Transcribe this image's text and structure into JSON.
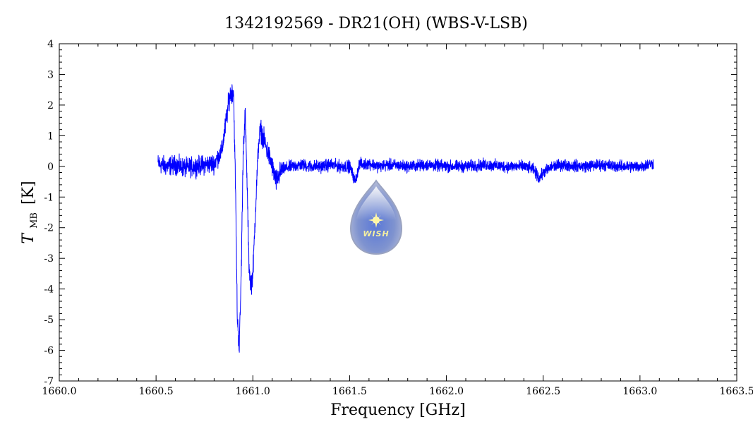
{
  "chart_data": {
    "type": "line",
    "title": "1342192569 - DR21(OH) (WBS-V-LSB)",
    "xlabel": "Frequency [GHz]",
    "ylabel_main": "T",
    "ylabel_sub": "MB",
    "ylabel_unit": "[K]",
    "xlim": [
      1660.0,
      1663.5
    ],
    "ylim": [
      -7,
      4
    ],
    "x_ticks": [
      1660.0,
      1660.5,
      1661.0,
      1661.5,
      1662.0,
      1662.5,
      1663.0,
      1663.5
    ],
    "x_tick_labels": [
      "1660.0",
      "1660.5",
      "1661.0",
      "1661.5",
      "1662.0",
      "1662.5",
      "1663.0",
      "1663.5"
    ],
    "y_ticks": [
      4,
      3,
      2,
      1,
      0,
      -1,
      -2,
      -3,
      -4,
      -5,
      -6,
      -7
    ],
    "y_tick_labels": [
      "4",
      "3",
      "2",
      "1",
      "0",
      "-1",
      "-2",
      "-3",
      "-4",
      "-5",
      "-6",
      "-7"
    ],
    "grid": false,
    "line_color": "#0000ff",
    "series": [
      {
        "x": [
          1660.51,
          1660.55,
          1660.6,
          1660.65,
          1660.7,
          1660.75,
          1660.8,
          1660.84,
          1660.86,
          1660.88,
          1660.9,
          1660.91,
          1660.92,
          1660.93,
          1660.94,
          1660.95,
          1660.96,
          1660.97,
          1660.98,
          1660.99,
          1661.0,
          1661.01,
          1661.02,
          1661.03,
          1661.04,
          1661.06,
          1661.08,
          1661.1,
          1661.12,
          1661.15,
          1661.2,
          1661.25,
          1661.3,
          1661.35,
          1661.4,
          1661.45,
          1661.5,
          1661.53,
          1661.55,
          1661.57,
          1661.6,
          1661.65,
          1661.7,
          1661.8,
          1661.9,
          1662.0,
          1662.1,
          1662.2,
          1662.3,
          1662.4,
          1662.45,
          1662.48,
          1662.5,
          1662.55,
          1662.6,
          1662.7,
          1662.8,
          1662.9,
          1663.0,
          1663.07
        ],
        "y": [
          0.1,
          0.0,
          0.05,
          -0.05,
          0.0,
          0.05,
          0.1,
          0.5,
          1.4,
          2.3,
          2.5,
          -0.5,
          -5.0,
          -5.9,
          -3.5,
          0.5,
          1.8,
          -0.5,
          -3.2,
          -3.9,
          -3.5,
          -2.0,
          -0.5,
          0.8,
          1.2,
          0.8,
          0.4,
          0.0,
          -0.5,
          -0.1,
          0.0,
          0.05,
          0.0,
          0.0,
          0.05,
          0.0,
          0.0,
          -0.5,
          0.1,
          0.05,
          0.1,
          0.0,
          0.05,
          0.0,
          0.05,
          0.0,
          0.0,
          0.05,
          0.0,
          0.0,
          -0.1,
          -0.4,
          -0.2,
          0.0,
          0.05,
          0.0,
          0.05,
          0.0,
          0.0,
          0.1
        ]
      }
    ]
  },
  "logo": {
    "text": "WISH"
  }
}
